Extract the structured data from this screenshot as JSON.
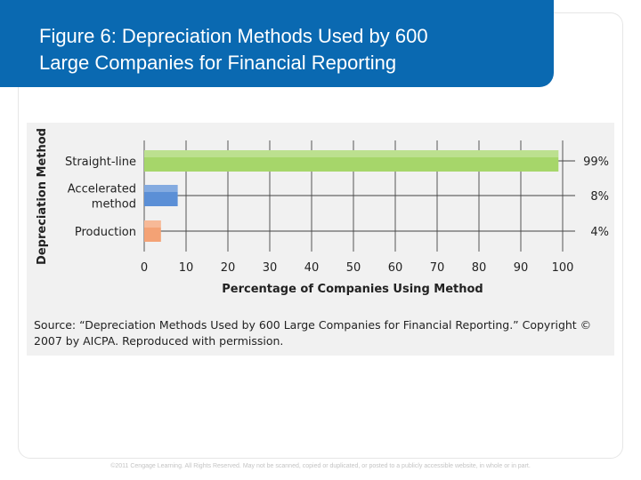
{
  "slide": {
    "title_line1": "Figure 6: Depreciation Methods Used by 600",
    "title_line2": "Large Companies for Financial Reporting",
    "source": "Source: “Depreciation Methods Used by 600 Large Companies for Financial Reporting.” Copyright © 2007 by AICPA. Reproduced with permission.",
    "footer": "©2011 Cengage Learning. All Rights Reserved. May not be scanned, copied or duplicated, or posted to a publicly accessible website, in whole or in part."
  },
  "colors": {
    "title_bg": "#0a69b1",
    "panel_bg": "#f1f1f1",
    "bar_straight_line": "#a6d66a",
    "bar_accelerated": "#5b8fd6",
    "bar_production": "#f4a275"
  },
  "chart_data": {
    "type": "bar",
    "orientation": "horizontal",
    "categories": [
      [
        "Straight-line"
      ],
      [
        "Accelerated",
        "method"
      ],
      [
        "Production"
      ]
    ],
    "values": [
      99,
      8,
      4
    ],
    "value_labels": [
      "99%",
      "8%",
      "4%"
    ],
    "xlabel": "Percentage of Companies Using Method",
    "ylabel": "Depreciation Method",
    "xlim": [
      0,
      100
    ],
    "xticks": [
      "0",
      "10",
      "20",
      "30",
      "40",
      "50",
      "60",
      "70",
      "80",
      "90",
      "100"
    ],
    "grid": true
  }
}
